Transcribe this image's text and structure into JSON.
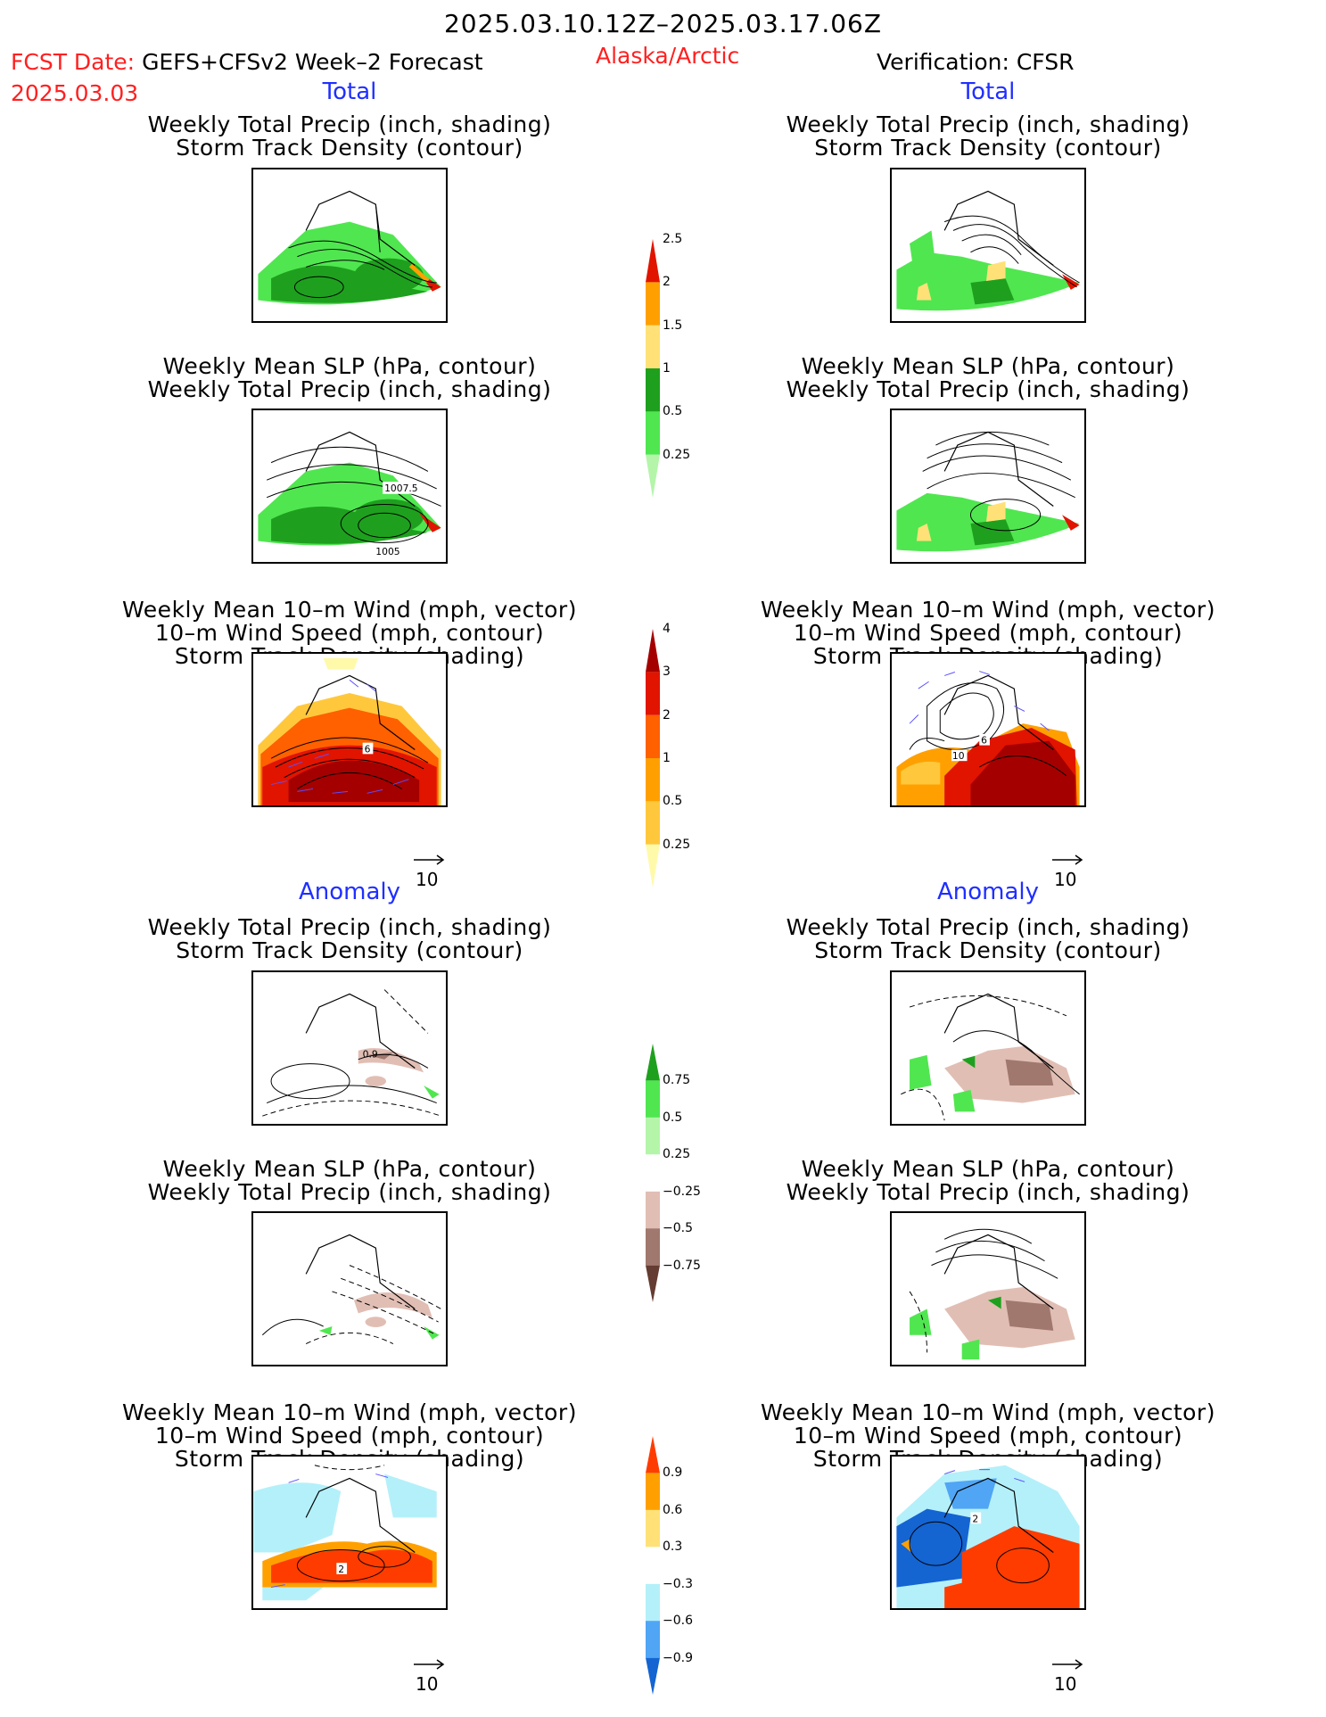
{
  "header": {
    "date_range": "2025.03.10.12Z–2025.03.17.06Z",
    "fcst_label": "FCST Date:",
    "model_name": "GEFS+CFSv2 Week–2 Forecast",
    "fcst_date": "2025.03.03",
    "region": "Alaska/Arctic",
    "verification": "Verification: CFSR"
  },
  "sections": {
    "total": "Total",
    "anomaly": "Anomaly"
  },
  "titles": {
    "precip_storm_1": "Weekly Total Precip (inch, shading)",
    "precip_storm_2": "Storm Track Density (contour)",
    "slp_precip_1": "Weekly Mean SLP (hPa, contour)",
    "slp_precip_2": "Weekly Total Precip (inch, shading)",
    "wind_1": "Weekly Mean 10–m Wind (mph, vector)",
    "wind_2": "10–m Wind Speed (mph, contour)",
    "wind_3": "Storm Track Density (shading)"
  },
  "contour_labels": {
    "slp_a": "1007.5",
    "slp_b": "1005",
    "wind_fcst": "6",
    "wind_cfsr_a": "6",
    "wind_cfsr_b": "10",
    "anom_fcst": "0.9",
    "anom_wind_fcst": "2",
    "anom_wind_cfsr": "2"
  },
  "vector_reference": "10",
  "colorbars": {
    "precip_total": {
      "colors": [
        "#b4f5aa",
        "#50e650",
        "#1ea01e",
        "#ffe178",
        "#ffa000",
        "#e11400"
      ],
      "labels": [
        "0.25",
        "0.5",
        "1",
        "1.5",
        "2",
        "2.5"
      ]
    },
    "storm_total": {
      "colors": [
        "#fffaaa",
        "#ffc83c",
        "#ffa000",
        "#ff6000",
        "#e11400",
        "#a50000"
      ],
      "labels": [
        "0.25",
        "0.5",
        "1",
        "2",
        "3",
        "4"
      ]
    },
    "precip_anom": {
      "colors": [
        "#643c32",
        "#a0786e",
        "#e1beb4",
        "#ffffff",
        "#b4f5aa",
        "#50e650",
        "#1ea01e"
      ],
      "labels": [
        "−0.75",
        "−0.5",
        "−0.25",
        "0.25",
        "0.5",
        "0.75"
      ]
    },
    "storm_anom": {
      "colors": [
        "#1464d2",
        "#50a5f5",
        "#b4f0fa",
        "#ffffff",
        "#ffe178",
        "#ffa000",
        "#ff3c00"
      ],
      "labels": [
        "−0.9",
        "−0.6",
        "−0.3",
        "0.3",
        "0.6",
        "0.9"
      ]
    }
  }
}
